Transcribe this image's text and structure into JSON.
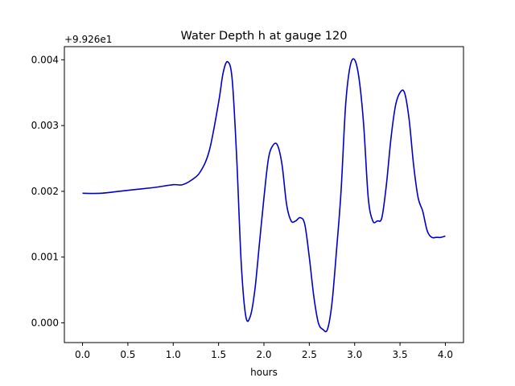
{
  "chart_data": {
    "type": "line",
    "title": "Water Depth h at gauge 120",
    "xlabel": "hours",
    "ylabel": "",
    "y_offset_label": "+9.926e1",
    "xlim": [
      -0.2,
      4.2
    ],
    "ylim": [
      -0.0003,
      0.0042
    ],
    "xticks": [
      0.0,
      0.5,
      1.0,
      1.5,
      2.0,
      2.5,
      3.0,
      3.5,
      4.0
    ],
    "xtick_labels": [
      "0.0",
      "0.5",
      "1.0",
      "1.5",
      "2.0",
      "2.5",
      "3.0",
      "3.5",
      "4.0"
    ],
    "yticks": [
      0.0,
      0.001,
      0.002,
      0.003,
      0.004
    ],
    "ytick_labels": [
      "0.000",
      "0.001",
      "0.002",
      "0.003",
      "0.004"
    ],
    "grid": false,
    "series": [
      {
        "color": "#0000cc",
        "x": [
          0.0,
          0.2,
          0.4,
          0.6,
          0.8,
          1.0,
          1.1,
          1.2,
          1.3,
          1.4,
          1.5,
          1.55,
          1.6,
          1.65,
          1.7,
          1.75,
          1.8,
          1.85,
          1.9,
          1.95,
          2.0,
          2.05,
          2.1,
          2.15,
          2.2,
          2.25,
          2.3,
          2.35,
          2.4,
          2.45,
          2.5,
          2.55,
          2.6,
          2.65,
          2.7,
          2.75,
          2.8,
          2.85,
          2.9,
          2.95,
          3.0,
          3.05,
          3.1,
          3.15,
          3.2,
          3.25,
          3.3,
          3.35,
          3.4,
          3.45,
          3.5,
          3.55,
          3.6,
          3.65,
          3.7,
          3.75,
          3.8,
          3.85,
          3.9,
          3.95,
          4.0
        ],
        "y": [
          0.00197,
          0.00197,
          0.002,
          0.00203,
          0.00206,
          0.0021,
          0.0021,
          0.00217,
          0.0023,
          0.00263,
          0.00335,
          0.0038,
          0.00397,
          0.0037,
          0.0025,
          0.0009,
          0.0001,
          0.0001,
          0.0005,
          0.0012,
          0.0019,
          0.0025,
          0.0027,
          0.0027,
          0.0024,
          0.0018,
          0.00155,
          0.00155,
          0.0016,
          0.0015,
          0.001,
          0.0004,
          0.0,
          -0.0001,
          -0.0001,
          0.0003,
          0.0011,
          0.002,
          0.0033,
          0.0039,
          0.004,
          0.0037,
          0.003,
          0.0019,
          0.00155,
          0.00155,
          0.0016,
          0.0021,
          0.0028,
          0.0033,
          0.0035,
          0.0035,
          0.0031,
          0.0024,
          0.0019,
          0.0017,
          0.0014,
          0.0013,
          0.0013,
          0.0013,
          0.00132
        ]
      }
    ]
  }
}
